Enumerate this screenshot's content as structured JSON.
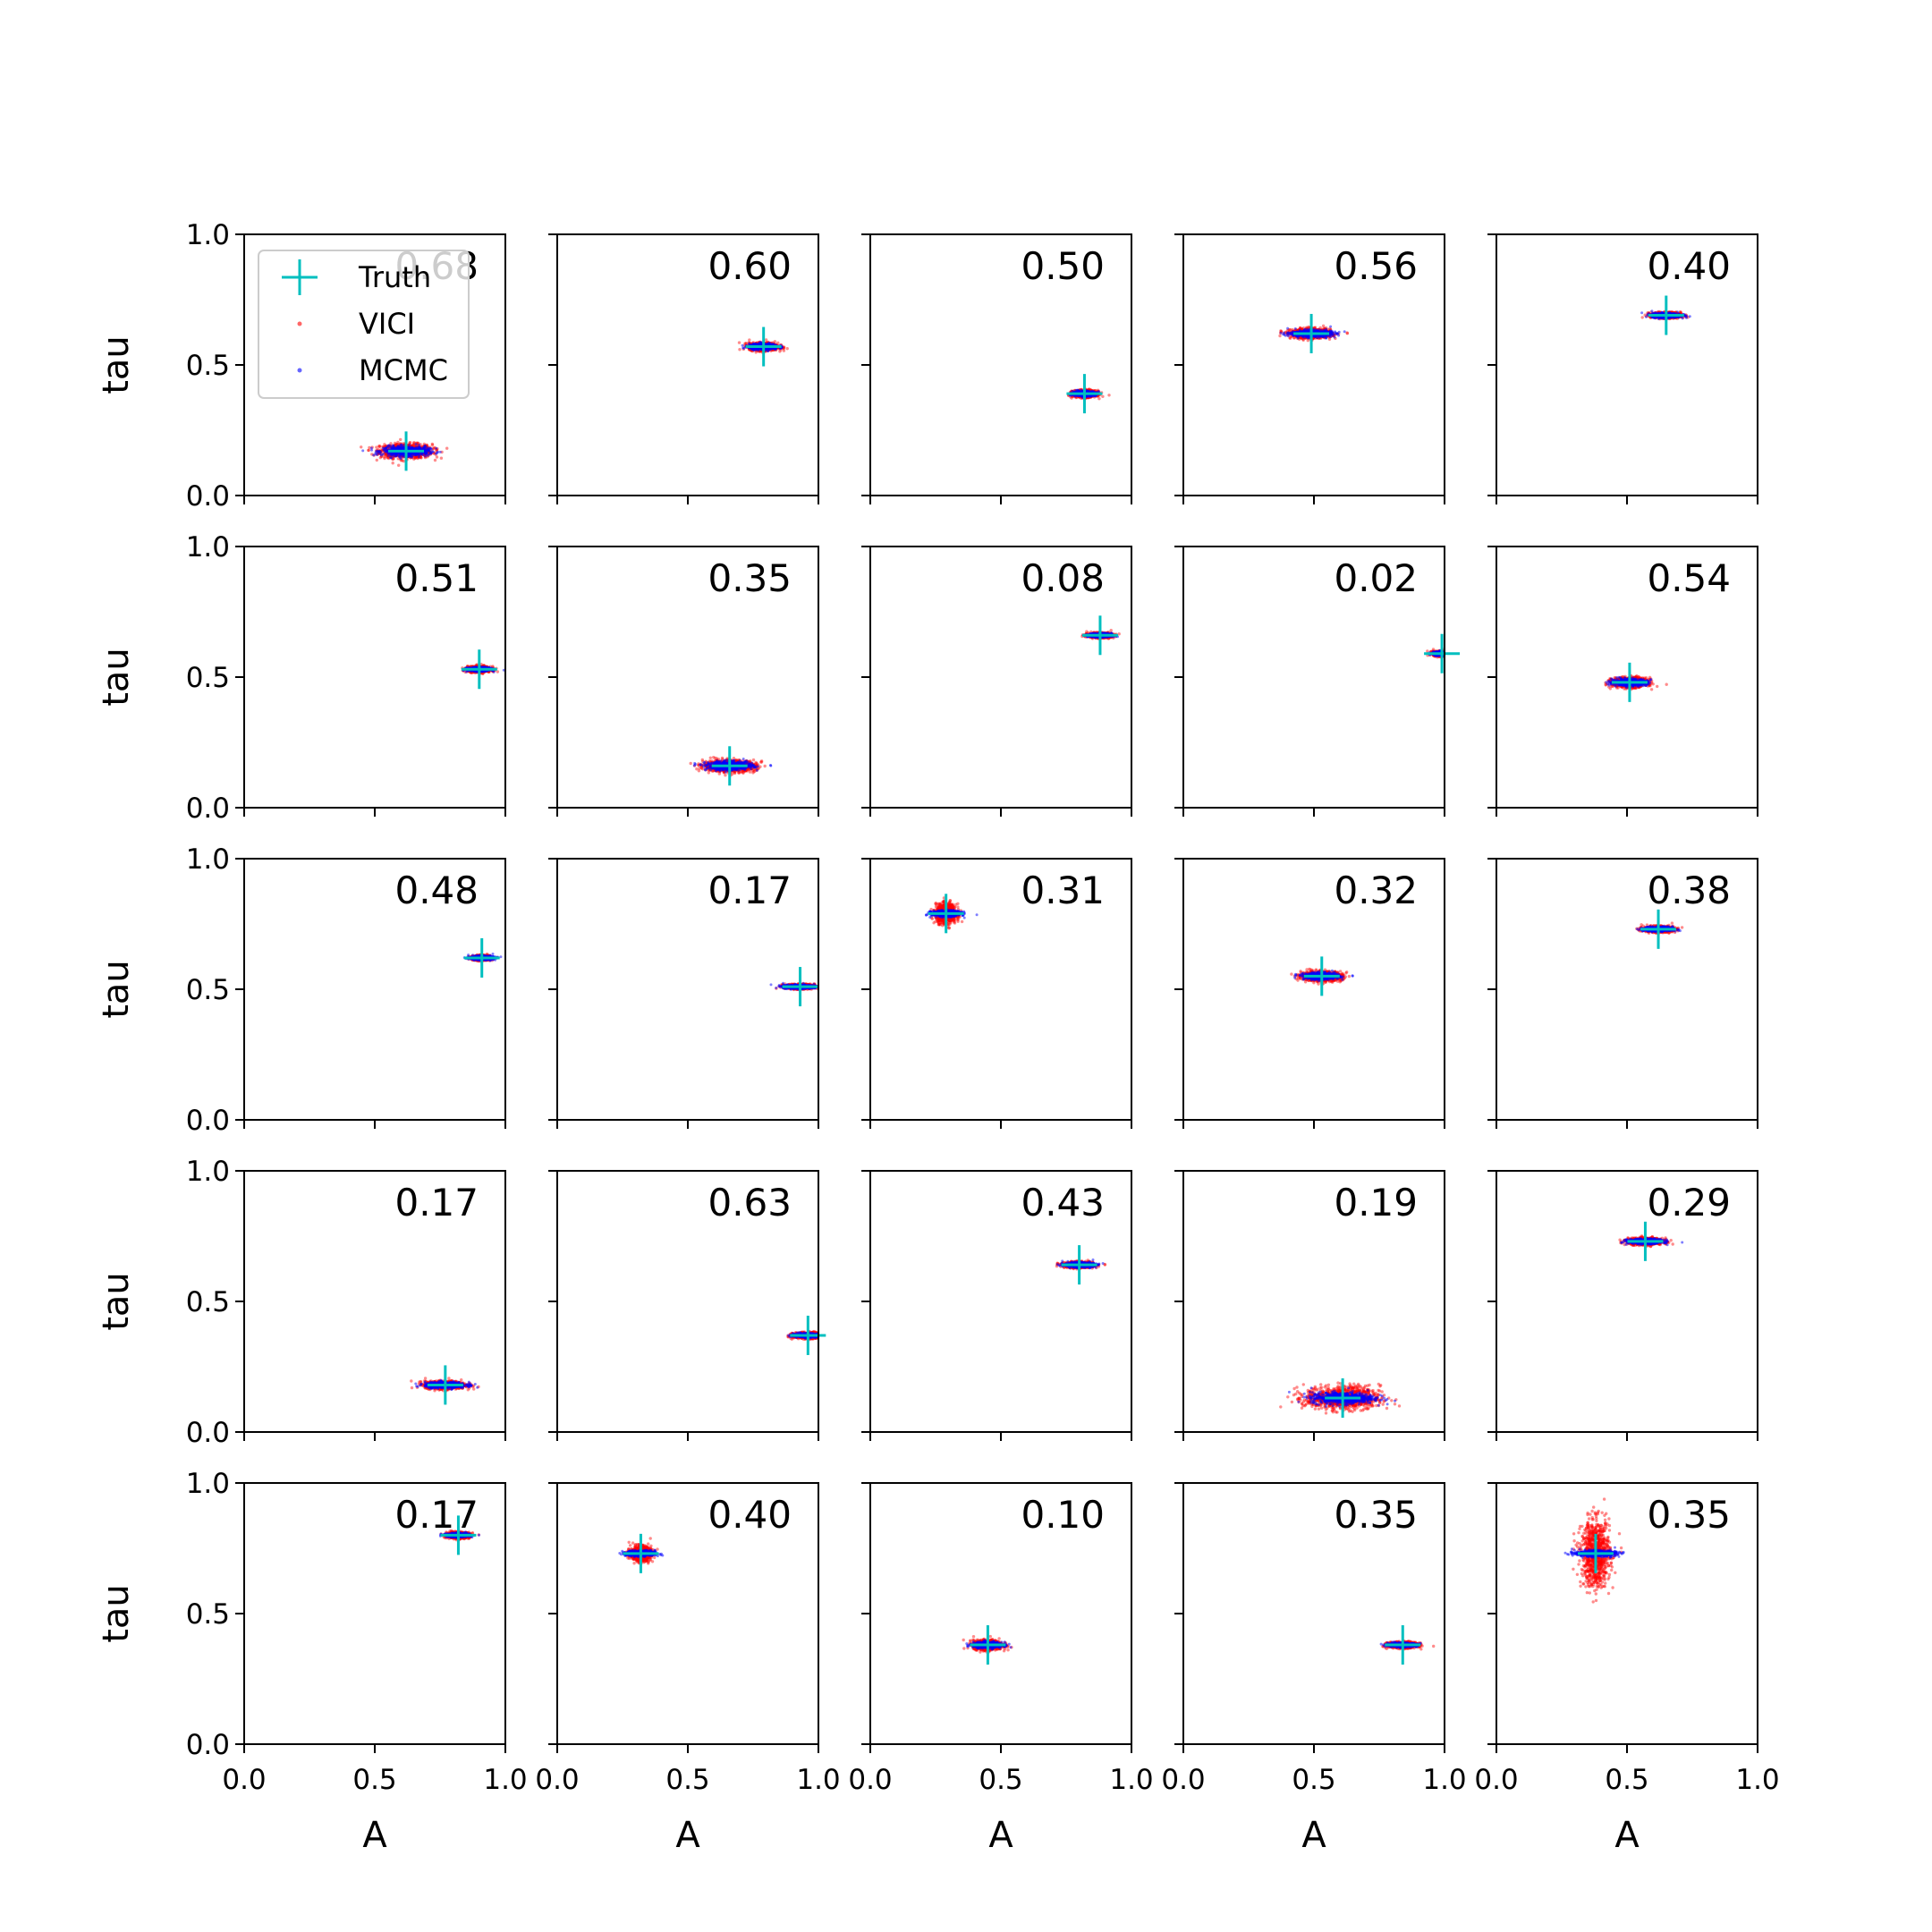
{
  "chart_data": {
    "type": "scatter",
    "layout": "grid 5x5",
    "xlabel": "A",
    "ylabel": "tau",
    "xlim": [
      0,
      1
    ],
    "ylim": [
      0,
      1
    ],
    "xticks": [
      "0.0",
      "0.5",
      "1.0"
    ],
    "yticks": [
      "0.0",
      "0.5",
      "1.0"
    ],
    "legend": {
      "placement": "top-left of first panel",
      "entries": [
        {
          "label": "Truth",
          "marker": "plus",
          "color": "#00bfbf"
        },
        {
          "label": "VICI",
          "marker": "dot",
          "color": "#ff0000"
        },
        {
          "label": "MCMC",
          "marker": "dot",
          "color": "#0000ff"
        }
      ]
    },
    "colors": {
      "truth": "#00bfbf",
      "vici": "#ff0000",
      "mcmc": "#0000ff"
    },
    "panels": [
      {
        "label": "0.68",
        "truth": [
          0.62,
          0.17
        ],
        "spread": {
          "vici_sx": 0.09,
          "vici_sy": 0.015,
          "mcmc_sx": 0.08,
          "mcmc_sy": 0.01
        }
      },
      {
        "label": "0.60",
        "truth": [
          0.79,
          0.57
        ],
        "spread": {
          "vici_sx": 0.05,
          "vici_sy": 0.008,
          "mcmc_sx": 0.05,
          "mcmc_sy": 0.006
        }
      },
      {
        "label": "0.50",
        "truth": [
          0.82,
          0.39
        ],
        "spread": {
          "vici_sx": 0.04,
          "vici_sy": 0.007,
          "mcmc_sx": 0.04,
          "mcmc_sy": 0.005
        }
      },
      {
        "label": "0.56",
        "truth": [
          0.49,
          0.62
        ],
        "spread": {
          "vici_sx": 0.07,
          "vici_sy": 0.01,
          "mcmc_sx": 0.07,
          "mcmc_sy": 0.007
        }
      },
      {
        "label": "0.40",
        "truth": [
          0.65,
          0.69
        ],
        "spread": {
          "vici_sx": 0.05,
          "vici_sy": 0.006,
          "mcmc_sx": 0.05,
          "mcmc_sy": 0.005
        }
      },
      {
        "label": "0.51",
        "truth": [
          0.9,
          0.53
        ],
        "spread": {
          "vici_sx": 0.04,
          "vici_sy": 0.006,
          "mcmc_sx": 0.04,
          "mcmc_sy": 0.004
        }
      },
      {
        "label": "0.35",
        "truth": [
          0.66,
          0.16
        ],
        "spread": {
          "vici_sx": 0.09,
          "vici_sy": 0.012,
          "mcmc_sx": 0.08,
          "mcmc_sy": 0.009
        }
      },
      {
        "label": "0.08",
        "truth": [
          0.88,
          0.66
        ],
        "spread": {
          "vici_sx": 0.04,
          "vici_sy": 0.005,
          "mcmc_sx": 0.04,
          "mcmc_sy": 0.004
        }
      },
      {
        "label": "0.02",
        "truth": [
          0.99,
          0.59
        ],
        "spread": {
          "vici_sx": 0.03,
          "vici_sy": 0.005,
          "mcmc_sx": 0.03,
          "mcmc_sy": 0.004
        }
      },
      {
        "label": "0.54",
        "truth": [
          0.51,
          0.48
        ],
        "spread": {
          "vici_sx": 0.06,
          "vici_sy": 0.01,
          "mcmc_sx": 0.06,
          "mcmc_sy": 0.007
        }
      },
      {
        "label": "0.48",
        "truth": [
          0.91,
          0.62
        ],
        "spread": {
          "vici_sx": 0.03,
          "vici_sy": 0.005,
          "mcmc_sx": 0.04,
          "mcmc_sy": 0.004
        }
      },
      {
        "label": "0.17",
        "truth": [
          0.93,
          0.51
        ],
        "spread": {
          "vici_sx": 0.05,
          "vici_sy": 0.005,
          "mcmc_sx": 0.06,
          "mcmc_sy": 0.004
        }
      },
      {
        "label": "0.31",
        "truth": [
          0.29,
          0.79
        ],
        "spread": {
          "vici_sx": 0.035,
          "vici_sy": 0.02,
          "mcmc_sx": 0.05,
          "mcmc_sy": 0.006
        }
      },
      {
        "label": "0.32",
        "truth": [
          0.53,
          0.55
        ],
        "spread": {
          "vici_sx": 0.07,
          "vici_sy": 0.01,
          "mcmc_sx": 0.06,
          "mcmc_sy": 0.007
        }
      },
      {
        "label": "0.38",
        "truth": [
          0.62,
          0.73
        ],
        "spread": {
          "vici_sx": 0.05,
          "vici_sy": 0.006,
          "mcmc_sx": 0.05,
          "mcmc_sy": 0.005
        }
      },
      {
        "label": "0.17",
        "truth": [
          0.77,
          0.18
        ],
        "spread": {
          "vici_sx": 0.07,
          "vici_sy": 0.008,
          "mcmc_sx": 0.07,
          "mcmc_sy": 0.006
        }
      },
      {
        "label": "0.63",
        "truth": [
          0.96,
          0.37
        ],
        "spread": {
          "vici_sx": 0.05,
          "vici_sy": 0.006,
          "mcmc_sx": 0.05,
          "mcmc_sy": 0.004
        }
      },
      {
        "label": "0.43",
        "truth": [
          0.8,
          0.64
        ],
        "spread": {
          "vici_sx": 0.05,
          "vici_sy": 0.006,
          "mcmc_sx": 0.05,
          "mcmc_sy": 0.005
        }
      },
      {
        "label": "0.19",
        "truth": [
          0.61,
          0.13
        ],
        "spread": {
          "vici_sx": 0.13,
          "vici_sy": 0.025,
          "mcmc_sx": 0.11,
          "mcmc_sy": 0.012
        }
      },
      {
        "label": "0.29",
        "truth": [
          0.57,
          0.73
        ],
        "spread": {
          "vici_sx": 0.06,
          "vici_sy": 0.007,
          "mcmc_sx": 0.06,
          "mcmc_sy": 0.005
        }
      },
      {
        "label": "0.17",
        "truth": [
          0.82,
          0.8
        ],
        "spread": {
          "vici_sx": 0.04,
          "vici_sy": 0.006,
          "mcmc_sx": 0.04,
          "mcmc_sy": 0.004
        }
      },
      {
        "label": "0.40",
        "truth": [
          0.32,
          0.73
        ],
        "spread": {
          "vici_sx": 0.035,
          "vici_sy": 0.015,
          "mcmc_sx": 0.05,
          "mcmc_sy": 0.006
        }
      },
      {
        "label": "0.10",
        "truth": [
          0.45,
          0.38
        ],
        "spread": {
          "vici_sx": 0.05,
          "vici_sy": 0.01,
          "mcmc_sx": 0.05,
          "mcmc_sy": 0.006
        }
      },
      {
        "label": "0.35",
        "truth": [
          0.84,
          0.38
        ],
        "spread": {
          "vici_sx": 0.05,
          "vici_sy": 0.006,
          "mcmc_sx": 0.05,
          "mcmc_sy": 0.004
        }
      },
      {
        "label": "0.35",
        "truth": [
          0.38,
          0.73
        ],
        "spread": {
          "vici_sx": 0.05,
          "vici_sy": 0.07,
          "mcmc_sx": 0.07,
          "mcmc_sy": 0.006
        }
      }
    ]
  }
}
